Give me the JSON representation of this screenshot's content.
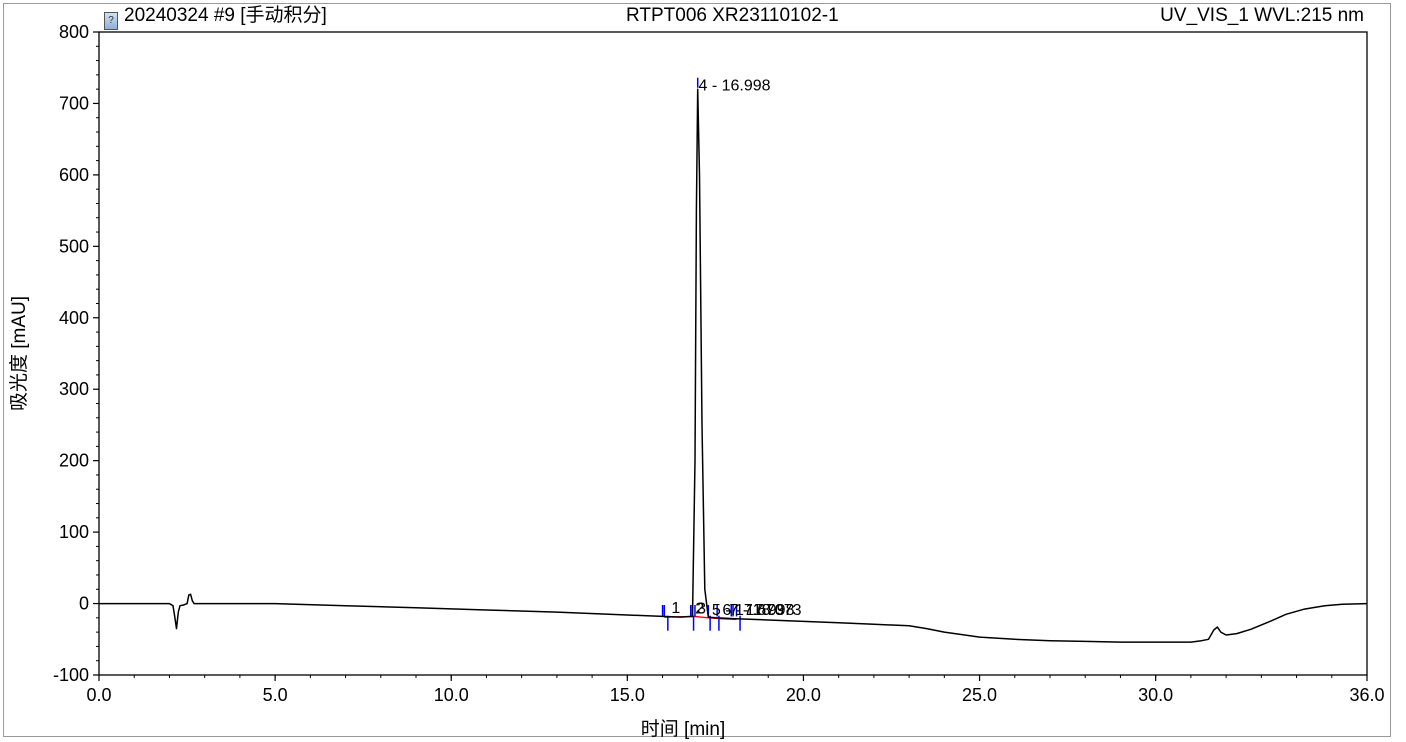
{
  "header": {
    "sequence": "20240324 #9 [手动积分]",
    "sample": "RTPT006 XR23110102-1",
    "channel": "UV_VIS_1 WVL:215 nm"
  },
  "colors": {
    "trace": "#000000",
    "baseline": "#ff0000",
    "peak_marker": "#0000ff",
    "axis": "#000000"
  },
  "chart_data": {
    "type": "line",
    "title": "",
    "xlabel": "时间 [min]",
    "ylabel": "吸光度 [mAU]",
    "xlim": [
      0.0,
      36.0
    ],
    "ylim": [
      -100,
      800
    ],
    "xticks": [
      0.0,
      5.0,
      10.0,
      15.0,
      20.0,
      25.0,
      30.0,
      36.0
    ],
    "xtick_labels": [
      "0.0",
      "5.0",
      "10.0",
      "15.0",
      "20.0",
      "25.0",
      "30.0",
      "36.0"
    ],
    "yticks": [
      -100,
      0,
      100,
      200,
      300,
      400,
      500,
      600,
      700,
      800
    ],
    "ytick_labels": [
      "-100",
      "0",
      "100",
      "200",
      "300",
      "400",
      "500",
      "600",
      "700",
      "800"
    ],
    "grid": false,
    "series": [
      {
        "x": [
          0.0,
          1.0,
          2.0,
          2.1,
          2.15,
          2.2,
          2.25,
          2.3,
          2.4,
          2.5,
          2.55,
          2.6,
          2.65,
          2.7,
          2.8,
          3.0,
          5.0,
          7.0,
          9.0,
          11.0,
          13.0,
          15.0,
          16.0,
          16.5,
          16.85,
          16.92,
          16.96,
          16.998,
          17.05,
          17.12,
          17.2,
          17.3,
          17.5,
          18.0,
          19.0,
          20.0,
          21.0,
          22.0,
          23.0,
          23.5,
          24.0,
          25.0,
          26.0,
          27.0,
          28.0,
          29.0,
          30.0,
          31.0,
          31.3,
          31.5,
          31.65,
          31.75,
          31.85,
          32.0,
          32.3,
          32.7,
          33.2,
          33.7,
          34.2,
          34.8,
          35.3,
          36.0
        ],
        "y": [
          0,
          0,
          0,
          -3,
          -18,
          -35,
          -12,
          -3,
          -2,
          0,
          12,
          13,
          4,
          0,
          0,
          0,
          0,
          -3,
          -6,
          -9,
          -12,
          -16,
          -18,
          -19,
          -18,
          200,
          550,
          720,
          600,
          250,
          20,
          -19,
          -20,
          -21,
          -23,
          -25,
          -27,
          -29,
          -31,
          -35,
          -40,
          -47,
          -50,
          -52,
          -53,
          -54,
          -54,
          -54,
          -52,
          -50,
          -37,
          -33,
          -40,
          -44,
          -42,
          -36,
          -26,
          -15,
          -8,
          -3,
          -1,
          0
        ]
      }
    ],
    "peaks": [
      {
        "number": 1,
        "label": "1"
      },
      {
        "number": 2,
        "label": "2"
      },
      {
        "number": 3,
        "label": "3"
      },
      {
        "number": 4,
        "label": "4 - 16.998",
        "rt": 16.998
      },
      {
        "number": 5,
        "label": "5 - 17.673"
      },
      {
        "number": 6,
        "label": "6 - 17.998"
      },
      {
        "number": 7,
        "label": "7 - 18.073"
      }
    ]
  }
}
